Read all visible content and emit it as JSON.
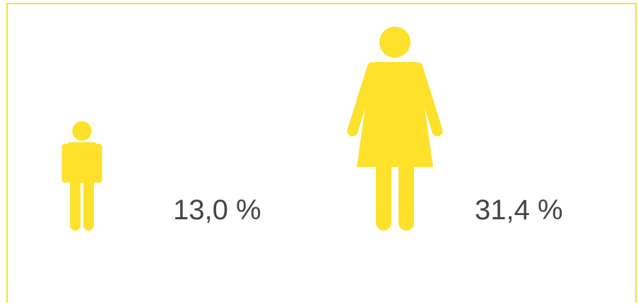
{
  "chart_data": {
    "type": "pictogram",
    "values": [
      13.0,
      31.4
    ],
    "value_labels": [
      "13,0 %",
      "31,4 %"
    ],
    "icons": [
      "man",
      "woman"
    ],
    "color": "#fde12a"
  }
}
